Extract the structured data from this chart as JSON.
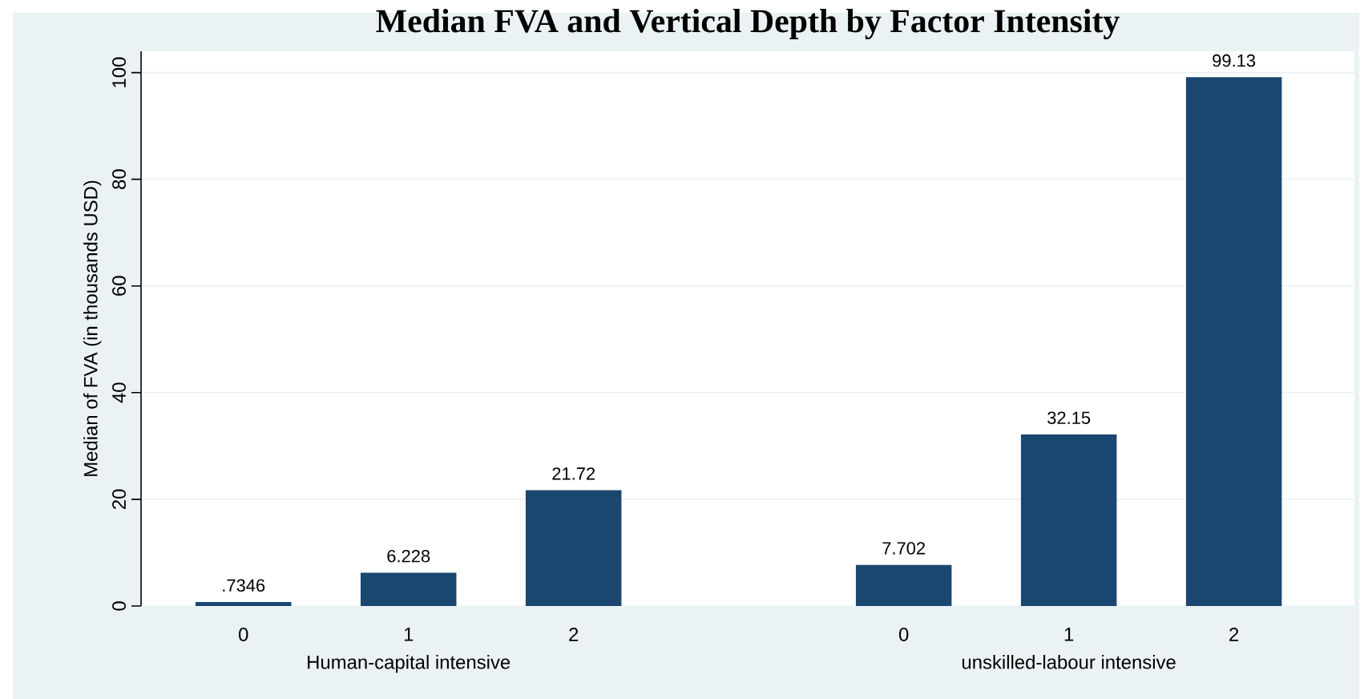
{
  "chart_data": {
    "type": "bar",
    "title": "Median FVA and Vertical Depth by Factor Intensity",
    "ylabel": "Median of FVA (in thousands USD)",
    "categories": [
      "0",
      "1",
      "2",
      null,
      "0",
      "1",
      "2"
    ],
    "values": [
      0.7346,
      6.228,
      21.72,
      null,
      7.702,
      32.15,
      99.13
    ],
    "value_labels": [
      ".7346",
      "6.228",
      "21.72",
      null,
      "7.702",
      "32.15",
      "99.13"
    ],
    "color": "#1a476f",
    "ylim": [
      0,
      104
    ],
    "yticks": [
      0,
      20,
      40,
      60,
      80,
      100
    ],
    "grid": "y",
    "annotations": [
      "Human-capital intensive",
      "unskilled-labour intensive"
    ]
  }
}
